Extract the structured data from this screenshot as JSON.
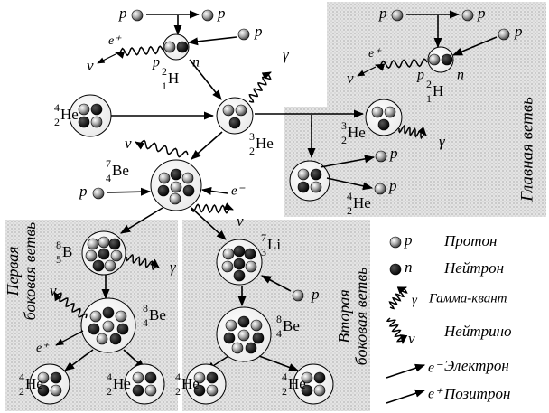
{
  "symbols": {
    "proton": "p",
    "neutron": "n",
    "positron": "e⁺",
    "electron": "e⁻",
    "gamma": "γ",
    "neutrino": "ν"
  },
  "nuclides": {
    "H2": {
      "A": "2",
      "Z": "1",
      "symbol": "H"
    },
    "He3": {
      "A": "3",
      "Z": "2",
      "symbol": "He"
    },
    "He4": {
      "A": "4",
      "Z": "2",
      "symbol": "He"
    },
    "Be7": {
      "A": "7",
      "Z": "4",
      "symbol": "Be"
    },
    "B8": {
      "A": "8",
      "Z": "5",
      "symbol": "B"
    },
    "Be8": {
      "A": "8",
      "Z": "4",
      "symbol": "Be"
    },
    "Li7": {
      "A": "7",
      "Z": "3",
      "symbol": "Li"
    }
  },
  "branches": {
    "main": "Главная ветвь",
    "first": [
      "Первая",
      "боковая ветвь"
    ],
    "second": [
      "Вторая",
      "боковая ветвь"
    ]
  },
  "legend": {
    "proton": "Протон",
    "neutron": "Нейтрон",
    "gamma": "Гамма-квант",
    "neutrino": "Нейтрино",
    "electron": "Электрон",
    "positron": "Позитрон"
  }
}
